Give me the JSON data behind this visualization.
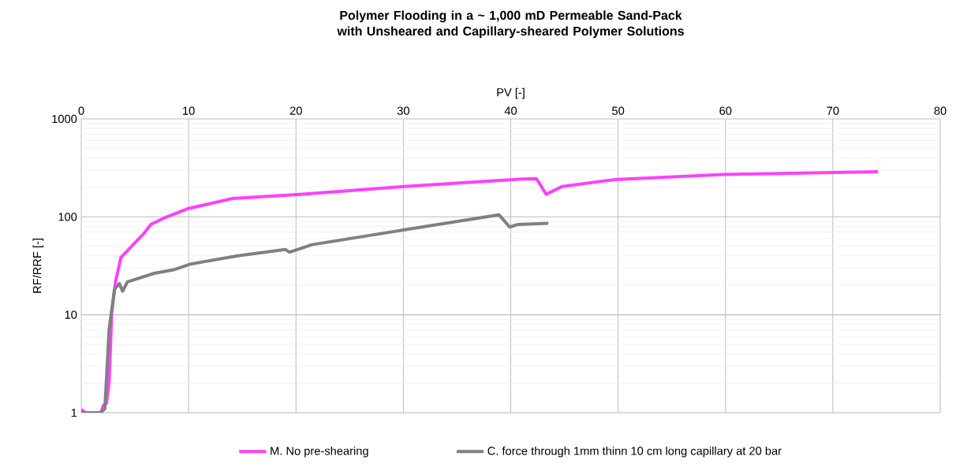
{
  "chart_data": {
    "type": "line",
    "title": "Polymer Flooding in a ~ 1,000 mD Permeable Sand-Pack with Unsheared and Capillary-sheared Polymer Solutions",
    "xlabel": "PV [-]",
    "ylabel": "RF/RRF [-]",
    "log": "y",
    "grid": true,
    "legend": "bottom",
    "marker": "none",
    "line_style": "solid",
    "xlim": [
      0,
      80
    ],
    "xticks": [
      0,
      10,
      20,
      30,
      40,
      50,
      60,
      70,
      80
    ],
    "ylim": [
      1,
      1000
    ],
    "yticks": [
      1,
      10,
      100,
      1000
    ],
    "series": [
      {
        "name": "M. No pre-shearing",
        "color": "#ff40ff",
        "x": [
          0,
          0.4,
          1.8,
          2.1,
          2.35,
          2.6,
          2.84,
          3.2,
          3.7,
          5.8,
          6.5,
          7.7,
          9.9,
          14.1,
          20.4,
          30.1,
          41.1,
          42.4,
          43.3,
          44.8,
          49.7,
          59.8,
          74.2
        ],
        "values": [
          1.08,
          1,
          1,
          1.2,
          1.25,
          2.1,
          10.5,
          22,
          38.5,
          67,
          84,
          97,
          121,
          154,
          170,
          204,
          244,
          245,
          170,
          204,
          240,
          271,
          289
        ]
      },
      {
        "name": "C. force through 1mm thinn 10 cm long capillary at 20 bar",
        "color": "#808080",
        "x": [
          0,
          1.8,
          2.2,
          2.6,
          3.1,
          3.55,
          3.85,
          4.3,
          6.8,
          8.7,
          10.2,
          14.6,
          19,
          19.4,
          21.5,
          30.1,
          38.9,
          39.9,
          40.7,
          43.5
        ],
        "values": [
          1,
          1,
          1.1,
          7.2,
          18.3,
          20.8,
          17.4,
          21.7,
          26.5,
          29,
          33,
          40,
          46.4,
          43.6,
          52,
          73.7,
          105,
          78.7,
          83.7,
          86
        ]
      }
    ]
  }
}
